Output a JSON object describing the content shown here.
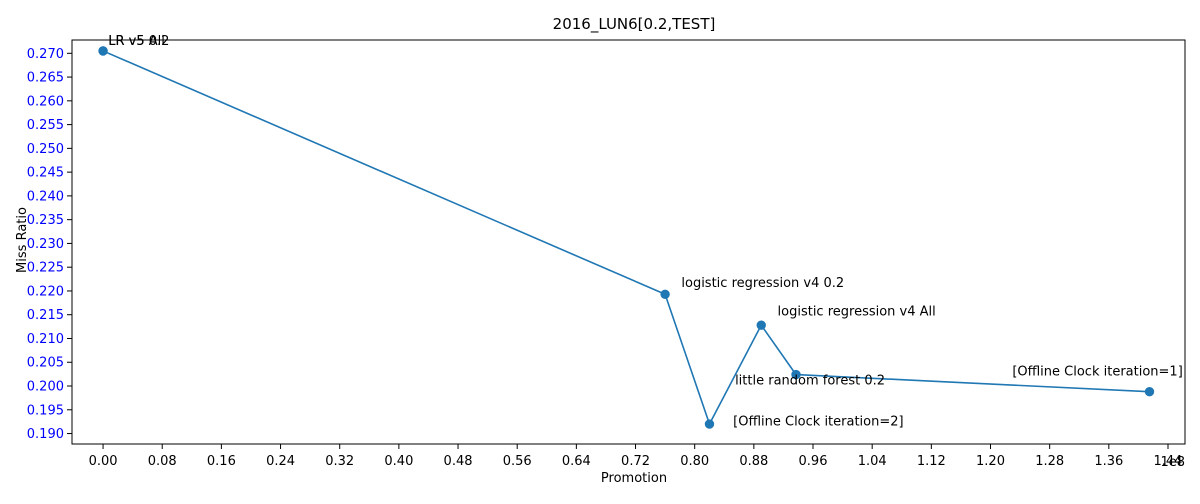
{
  "chart_data": {
    "type": "line",
    "title": "2016_LUN6[0.2,TEST]",
    "xlabel": "Promotion",
    "ylabel": "Miss Ratio",
    "x_offset_text": "1e8",
    "x_scale": 100000000,
    "xlim": [
      -0.042,
      1.463
    ],
    "ylim": [
      0.1878,
      0.2728
    ],
    "x_ticks": [
      0.0,
      0.08,
      0.16,
      0.24,
      0.32,
      0.4,
      0.48,
      0.56,
      0.64,
      0.72,
      0.8,
      0.88,
      0.96,
      1.04,
      1.12,
      1.2,
      1.28,
      1.36,
      1.44
    ],
    "x_tick_labels": [
      "0.00",
      "0.08",
      "0.16",
      "0.24",
      "0.32",
      "0.40",
      "0.48",
      "0.56",
      "0.64",
      "0.72",
      "0.80",
      "0.88",
      "0.96",
      "1.04",
      "1.12",
      "1.20",
      "1.28",
      "1.36",
      "1.44"
    ],
    "y_ticks": [
      0.19,
      0.195,
      0.2,
      0.205,
      0.21,
      0.215,
      0.22,
      0.225,
      0.23,
      0.235,
      0.24,
      0.245,
      0.25,
      0.255,
      0.26,
      0.265,
      0.27
    ],
    "y_tick_labels": [
      "0.190",
      "0.195",
      "0.200",
      "0.205",
      "0.210",
      "0.215",
      "0.220",
      "0.225",
      "0.230",
      "0.235",
      "0.240",
      "0.245",
      "0.250",
      "0.255",
      "0.260",
      "0.265",
      "0.270"
    ],
    "grid": false,
    "series": [
      {
        "color": "#1f77b4",
        "x": [
          0.0,
          0.0,
          0.76,
          0.82,
          0.89,
          0.937,
          1.415
        ],
        "y": [
          0.2705,
          0.2705,
          0.2193,
          0.192,
          0.2128,
          0.2024,
          0.1988
        ]
      }
    ],
    "annotations": [
      {
        "text": "LR v5 0.2",
        "x": 0.0,
        "y": 0.2705,
        "anchor": "start",
        "dx": 0.007,
        "dy": 0.0012,
        "color": "#000000"
      },
      {
        "text": "LR v5 All",
        "x": 0.0,
        "y": 0.2705,
        "anchor": "start",
        "dx": 0.007,
        "dy": 0.0012,
        "color": "#000000"
      },
      {
        "text": "logistic regression v4 0.2",
        "x": 0.76,
        "y": 0.2193,
        "anchor": "start",
        "dx": 0.022,
        "dy": 0.0015,
        "color": "#000000"
      },
      {
        "text": "[Offline Clock iteration=2]",
        "x": 0.82,
        "y": 0.192,
        "anchor": "start",
        "dx": 0.032,
        "dy": -0.0003,
        "color": "#000000"
      },
      {
        "text": "logistic regression v4 All",
        "x": 0.89,
        "y": 0.2128,
        "anchor": "start",
        "dx": 0.022,
        "dy": 0.002,
        "color": "#000000"
      },
      {
        "text": "little random forest 0.2",
        "x": 0.937,
        "y": 0.2024,
        "anchor": "middle",
        "dx": 0.019,
        "dy": -0.0021,
        "color": "#000000"
      },
      {
        "text": "[Offline Clock iteration=1]",
        "x": 1.415,
        "y": 0.1988,
        "anchor": "end",
        "dx": 0.045,
        "dy": 0.0034,
        "color": "#000000"
      }
    ],
    "ytick_color": "#0000ff"
  }
}
